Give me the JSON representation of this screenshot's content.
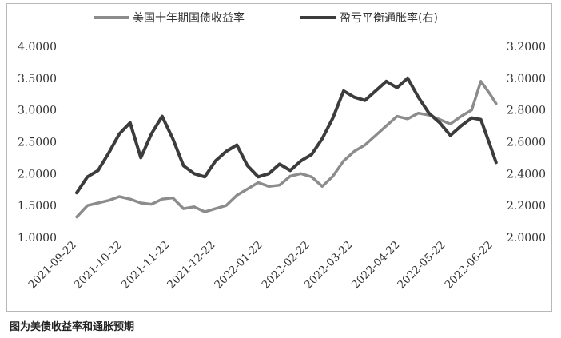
{
  "caption": "图为美债收益率和通胀预期",
  "chart_data": {
    "type": "line",
    "xlabel": "",
    "ylabel": "",
    "x_ticks": [
      "2021-09-22",
      "2021-10-22",
      "2021-11-22",
      "2021-12-22",
      "2022-01-22",
      "2022-02-22",
      "2022-03-22",
      "2022-04-22",
      "2022-05-22",
      "2022-06-22"
    ],
    "y_left": {
      "ticks": [
        "1.0000",
        "1.5000",
        "2.0000",
        "2.5000",
        "3.0000",
        "3.5000",
        "4.0000"
      ],
      "range": [
        1.0,
        4.0
      ]
    },
    "y_right": {
      "ticks": [
        "2.0000",
        "2.2000",
        "2.4000",
        "2.6000",
        "2.8000",
        "3.0000",
        "3.2000"
      ],
      "range": [
        2.0,
        3.2
      ]
    },
    "legend_position": "top",
    "grid": false,
    "series": [
      {
        "name": "美国十年期国债收益率",
        "axis": "left",
        "color": "#8c8c8c",
        "x": [
          "2021-09-22",
          "2021-09-29",
          "2021-10-06",
          "2021-10-13",
          "2021-10-20",
          "2021-10-27",
          "2021-11-03",
          "2021-11-10",
          "2021-11-17",
          "2021-11-24",
          "2021-12-01",
          "2021-12-08",
          "2021-12-15",
          "2021-12-22",
          "2021-12-29",
          "2022-01-05",
          "2022-01-12",
          "2022-01-19",
          "2022-01-26",
          "2022-02-02",
          "2022-02-09",
          "2022-02-16",
          "2022-02-23",
          "2022-03-02",
          "2022-03-09",
          "2022-03-16",
          "2022-03-23",
          "2022-03-30",
          "2022-04-06",
          "2022-04-13",
          "2022-04-20",
          "2022-04-27",
          "2022-05-04",
          "2022-05-11",
          "2022-05-18",
          "2022-05-25",
          "2022-06-01",
          "2022-06-08",
          "2022-06-14",
          "2022-06-20",
          "2022-06-24"
        ],
        "values": [
          1.32,
          1.5,
          1.54,
          1.58,
          1.64,
          1.6,
          1.54,
          1.52,
          1.6,
          1.62,
          1.45,
          1.48,
          1.4,
          1.45,
          1.5,
          1.66,
          1.76,
          1.86,
          1.8,
          1.82,
          1.96,
          2.0,
          1.95,
          1.8,
          1.96,
          2.2,
          2.35,
          2.45,
          2.6,
          2.75,
          2.9,
          2.86,
          2.95,
          2.92,
          2.85,
          2.78,
          2.9,
          3.0,
          3.45,
          3.25,
          3.1
        ]
      },
      {
        "name": "盈亏平衡通胀率(右)",
        "axis": "right",
        "color": "#3c3c3c",
        "x": [
          "2021-09-22",
          "2021-09-29",
          "2021-10-06",
          "2021-10-13",
          "2021-10-20",
          "2021-10-27",
          "2021-11-03",
          "2021-11-10",
          "2021-11-17",
          "2021-11-24",
          "2021-12-01",
          "2021-12-08",
          "2021-12-15",
          "2021-12-22",
          "2021-12-29",
          "2022-01-05",
          "2022-01-12",
          "2022-01-19",
          "2022-01-26",
          "2022-02-02",
          "2022-02-09",
          "2022-02-16",
          "2022-02-23",
          "2022-03-02",
          "2022-03-09",
          "2022-03-16",
          "2022-03-23",
          "2022-03-30",
          "2022-04-06",
          "2022-04-13",
          "2022-04-20",
          "2022-04-27",
          "2022-05-04",
          "2022-05-11",
          "2022-05-18",
          "2022-05-25",
          "2022-06-01",
          "2022-06-08",
          "2022-06-14",
          "2022-06-20",
          "2022-06-24"
        ],
        "values": [
          2.28,
          2.38,
          2.42,
          2.53,
          2.65,
          2.72,
          2.5,
          2.65,
          2.76,
          2.62,
          2.45,
          2.4,
          2.38,
          2.48,
          2.54,
          2.58,
          2.45,
          2.38,
          2.4,
          2.46,
          2.42,
          2.48,
          2.52,
          2.62,
          2.75,
          2.92,
          2.88,
          2.86,
          2.92,
          2.98,
          2.94,
          3.0,
          2.88,
          2.78,
          2.72,
          2.64,
          2.7,
          2.75,
          2.74,
          2.58,
          2.47
        ]
      }
    ]
  }
}
